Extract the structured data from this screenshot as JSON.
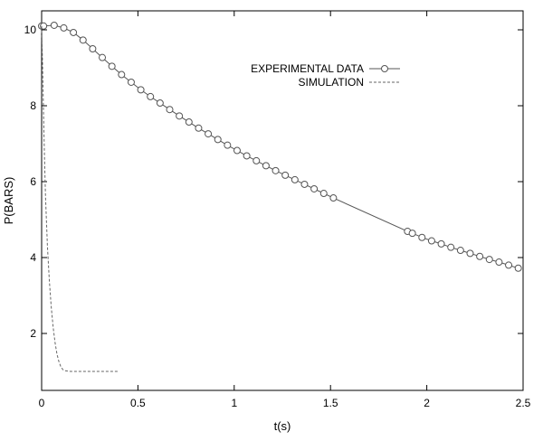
{
  "chart_data": {
    "type": "line",
    "title": "",
    "xlabel": "t(s)",
    "ylabel": "P(BARS)",
    "xlim": [
      0,
      2.5
    ],
    "ylim": [
      0.5,
      10.5
    ],
    "xticks": [
      0,
      0.5,
      1,
      1.5,
      2,
      2.5
    ],
    "xtick_labels": [
      "0",
      "0.5",
      "1",
      "1.5",
      "2",
      "2.5"
    ],
    "yticks": [
      2,
      4,
      6,
      8,
      10
    ],
    "ytick_labels": [
      "2",
      "4",
      "6",
      "8",
      "10"
    ],
    "grid": false,
    "legend_position": "top-right",
    "series": [
      {
        "name": "EXPERIMENTAL DATA",
        "style": "solid line with circle markers",
        "color": "#555555",
        "x": [
          0.0,
          0.01,
          0.065,
          0.115,
          0.165,
          0.215,
          0.265,
          0.315,
          0.365,
          0.415,
          0.465,
          0.515,
          0.565,
          0.615,
          0.665,
          0.715,
          0.765,
          0.815,
          0.865,
          0.915,
          0.965,
          1.015,
          1.065,
          1.115,
          1.165,
          1.215,
          1.265,
          1.315,
          1.365,
          1.415,
          1.465,
          1.515,
          1.9,
          1.925,
          1.975,
          2.025,
          2.075,
          2.125,
          2.175,
          2.225,
          2.275,
          2.325,
          2.375,
          2.425,
          2.475
        ],
        "y": [
          10.1,
          10.1,
          10.12,
          10.05,
          9.93,
          9.73,
          9.5,
          9.27,
          9.04,
          8.82,
          8.62,
          8.42,
          8.24,
          8.07,
          7.9,
          7.73,
          7.57,
          7.41,
          7.26,
          7.11,
          6.96,
          6.82,
          6.68,
          6.55,
          6.42,
          6.29,
          6.17,
          6.05,
          5.93,
          5.81,
          5.69,
          5.57,
          4.69,
          4.64,
          4.53,
          4.44,
          4.36,
          4.27,
          4.19,
          4.11,
          4.03,
          3.95,
          3.88,
          3.8,
          3.72
        ]
      },
      {
        "name": "SIMULATION",
        "style": "dashed line",
        "color": "#666666",
        "x": [
          0.0,
          0.005,
          0.01,
          0.015,
          0.02,
          0.03,
          0.04,
          0.05,
          0.06,
          0.07,
          0.08,
          0.09,
          0.1,
          0.11,
          0.12,
          0.15,
          0.2,
          0.3,
          0.4
        ],
        "y": [
          10.1,
          9.0,
          7.8,
          6.6,
          5.6,
          4.3,
          3.4,
          2.7,
          2.15,
          1.75,
          1.45,
          1.25,
          1.12,
          1.05,
          1.02,
          1.0,
          1.0,
          1.0,
          1.0
        ]
      }
    ]
  }
}
